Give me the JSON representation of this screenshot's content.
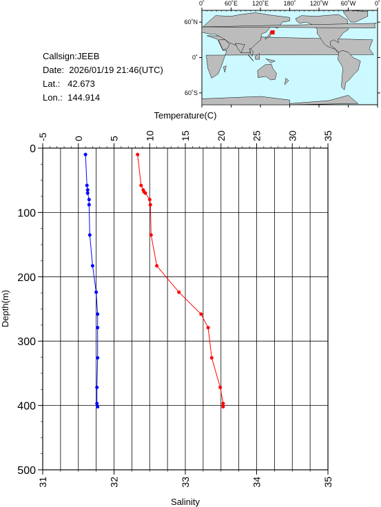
{
  "info": {
    "callsign": "Callsign:JEEB",
    "date": "Date:  2026/01/19 21:46(UTC)",
    "lat": "Lat.:   42.673",
    "lon": "Lon.:  144.914"
  },
  "map": {
    "top_ticks": [
      "0˚",
      "60˚E",
      "120˚E",
      "180˚",
      "120˚W",
      "60˚W",
      "0˚"
    ],
    "lat_ticks": [
      "60˚N",
      "0˚",
      "60˚S"
    ],
    "ocean_color": "#ccf8ff",
    "land_color": "#bcbcbc",
    "marker_color": "#ff0000",
    "marker_lon": 144.914,
    "marker_lat": 42.673
  },
  "chart_data": {
    "type": "line",
    "ylabel": "Depth(m)",
    "ylim": [
      500,
      0
    ],
    "yticks": [
      "0",
      "100",
      "200",
      "300",
      "400",
      "500"
    ],
    "top_axis": {
      "label": "Temperature(C)",
      "range": [
        -5,
        35
      ],
      "ticks": [
        "-5",
        "0",
        "5",
        "10",
        "15",
        "20",
        "25",
        "30",
        "35"
      ]
    },
    "bottom_axis": {
      "label": "Salinity",
      "range": [
        31,
        35
      ],
      "ticks": [
        "31",
        "32",
        "33",
        "34",
        "35"
      ]
    },
    "grid": true,
    "series": [
      {
        "axis": "top",
        "color": "#ff0000",
        "points": [
          [
            8.3,
            10
          ],
          [
            8.8,
            58
          ],
          [
            9.1,
            65
          ],
          [
            9.2,
            68
          ],
          [
            9.4,
            70
          ],
          [
            10.0,
            80
          ],
          [
            10.1,
            88
          ],
          [
            10.2,
            135
          ],
          [
            11.0,
            183
          ],
          [
            14.1,
            224
          ],
          [
            17.2,
            258
          ],
          [
            18.2,
            279
          ],
          [
            18.7,
            326
          ],
          [
            19.9,
            372
          ],
          [
            20.3,
            397
          ],
          [
            20.3,
            402
          ]
        ]
      },
      {
        "axis": "bottom",
        "color": "#0000ff",
        "points": [
          [
            31.6,
            10
          ],
          [
            31.62,
            58
          ],
          [
            31.63,
            65
          ],
          [
            31.63,
            70
          ],
          [
            31.65,
            80
          ],
          [
            31.65,
            88
          ],
          [
            31.66,
            135
          ],
          [
            31.7,
            183
          ],
          [
            31.75,
            224
          ],
          [
            31.77,
            258
          ],
          [
            31.77,
            279
          ],
          [
            31.77,
            326
          ],
          [
            31.76,
            372
          ],
          [
            31.76,
            397
          ],
          [
            31.77,
            402
          ]
        ]
      }
    ]
  }
}
